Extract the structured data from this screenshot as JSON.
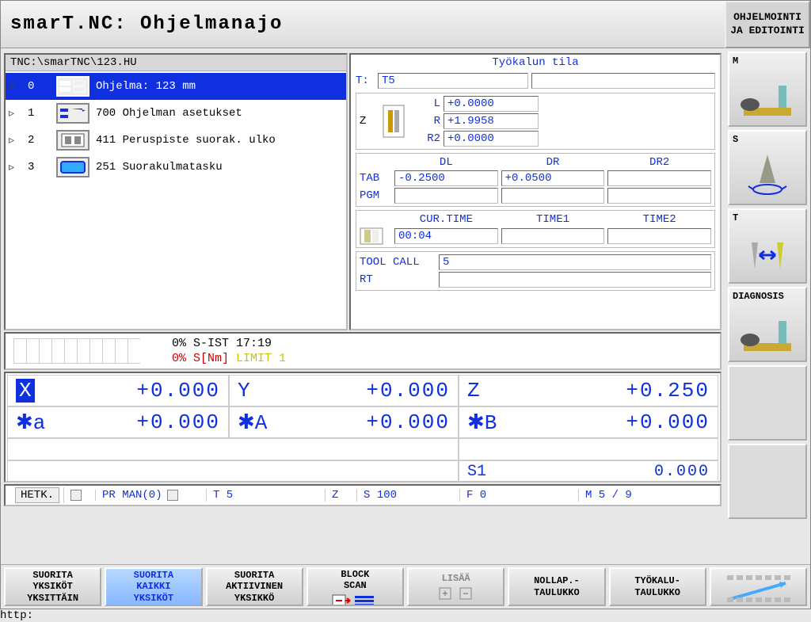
{
  "title": "smarT.NC: Ohjelmanajo",
  "mode_box": {
    "line1": "OHJELMOINTI",
    "line2": "JA EDITOINTI"
  },
  "program": {
    "path": "TNC:\\smarTNC\\123.HU",
    "rows": [
      {
        "num": "0",
        "expand": "▿",
        "icon": "prog",
        "label": "Ohjelma: 123 mm",
        "selected": true
      },
      {
        "num": "1",
        "expand": "▹",
        "icon": "set",
        "label": "700 Ohjelman asetukset",
        "selected": false
      },
      {
        "num": "2",
        "expand": "▹",
        "icon": "probe",
        "label": "411 Peruspiste suorak. ulko",
        "selected": false
      },
      {
        "num": "3",
        "expand": "▹",
        "icon": "rect",
        "label": "251 Suorakulmatasku",
        "selected": false
      }
    ]
  },
  "tool_status": {
    "title": "Työkalun tila",
    "T": "T5",
    "Z": "Z",
    "L": "+0.0000",
    "R": "+1.9958",
    "R2": "+0.0000",
    "DL": "-0.2500",
    "DR": "+0.0500",
    "DR2": "",
    "TAB": "TAB",
    "PGM": "PGM",
    "CUR_TIME": "00:04",
    "TIME1": "",
    "TIME2": "",
    "TOOL_CALL": "5",
    "RT": "",
    "labels": {
      "T": "T:",
      "L": "L",
      "R": "R",
      "R2": "R2",
      "DL": "DL",
      "DR": "DR",
      "DR2": "DR2",
      "CUR_TIME": "CUR.TIME",
      "TIME1": "TIME1",
      "TIME2": "TIME2",
      "TOOL_CALL": "TOOL CALL",
      "RT": "RT"
    }
  },
  "status_strip": {
    "sist": "0% S-IST 17:19",
    "snm_pct": "0% S[Nm] ",
    "limit": "LIMIT 1"
  },
  "position": {
    "X": {
      "axis": "X",
      "val": "+0.000",
      "hl": true
    },
    "Y": {
      "axis": "Y",
      "val": "+0.000"
    },
    "Z": {
      "axis": "Z",
      "val": "+0.250"
    },
    "a": {
      "axis": "✱a",
      "val": "+0.000"
    },
    "A": {
      "axis": "✱A",
      "val": "+0.000"
    },
    "B": {
      "axis": "✱B",
      "val": "+0.000"
    },
    "S1": {
      "axis": "S1",
      "val": "0.000"
    }
  },
  "info": {
    "hetk": "HETK.",
    "pr": "PR MAN(0)",
    "t": "T  5",
    "z": "Z",
    "s": "S 100",
    "f": "F  0",
    "m": "M 5 / 9"
  },
  "right_keys": [
    {
      "label": "M",
      "glyph": "machine"
    },
    {
      "label": "S",
      "glyph": "spindle"
    },
    {
      "label": "T",
      "glyph": "tooltool"
    },
    {
      "label": "DIAGNOSIS",
      "glyph": "machine"
    },
    {
      "label": "",
      "glyph": ""
    },
    {
      "label": "",
      "glyph": ""
    }
  ],
  "bottom_keys": [
    {
      "label": "SUORITA\nYKSIKÖT\nYKSITTÄIN",
      "state": ""
    },
    {
      "label": "SUORITA\nKAIKKI\nYKSIKÖT",
      "state": "active"
    },
    {
      "label": "SUORITA\nAKTIIVINEN\nYKSIKKÖ",
      "state": ""
    },
    {
      "label": "BLOCK\nSCAN",
      "state": "",
      "glyph": "blockscan"
    },
    {
      "label": "LISÄÄ",
      "state": "dim",
      "glyph": "plusminus"
    },
    {
      "label": "NOLLAP.-\nTAULUKKO",
      "state": ""
    },
    {
      "label": "TYÖKALU-\nTAULUKKO",
      "state": ""
    },
    {
      "label": "",
      "state": "",
      "glyph": "bars"
    }
  ],
  "colors": {
    "accent": "#1030e0",
    "bg": "#e8e8e8",
    "panel": "#ffffff",
    "red": "#d00000",
    "yellow": "#c8c800",
    "active_grad_a": "#b8d8ff",
    "active_grad_b": "#88b8ff"
  }
}
